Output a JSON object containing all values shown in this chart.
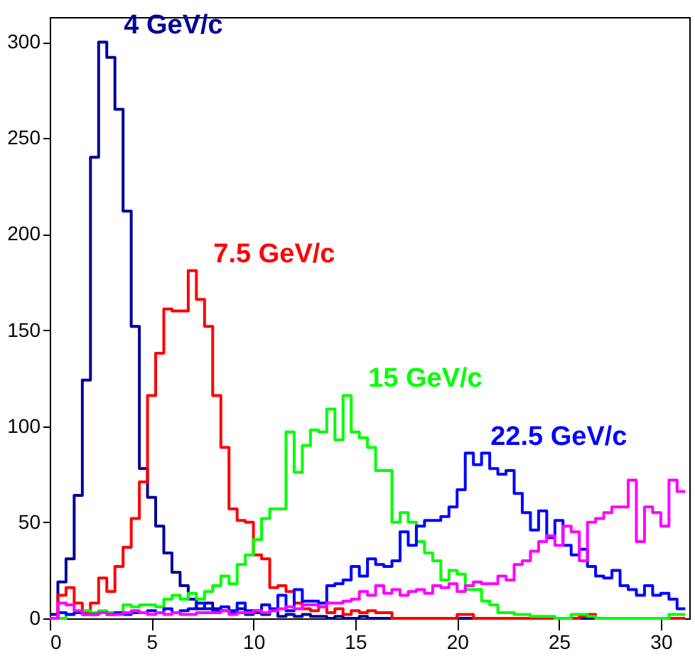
{
  "chart_data": {
    "type": "histogram",
    "bins": [
      0,
      0.4,
      0.8,
      1.2,
      1.6,
      2,
      2.4,
      2.8,
      3.2,
      3.6,
      4,
      4.4,
      4.8,
      5.2,
      5.6,
      6,
      6.4,
      6.8,
      7.2,
      7.6,
      8,
      8.4,
      8.8,
      9.2,
      9.6,
      10,
      10.4,
      10.8,
      11.2,
      11.6,
      12,
      12.4,
      12.8,
      13.2,
      13.6,
      14,
      14.4,
      14.8,
      15.2,
      15.6,
      16,
      16.4,
      16.8,
      17.2,
      17.6,
      18,
      18.4,
      18.8,
      19.2,
      19.6,
      20,
      20.4,
      20.8,
      21.2,
      21.6,
      22,
      22.4,
      22.8,
      23.2,
      23.6,
      24,
      24.4,
      24.8,
      25.2,
      25.6,
      26,
      26.4,
      26.8,
      27.2,
      27.6,
      28,
      28.4,
      28.8,
      29.2,
      29.6,
      30,
      30.4,
      30.8,
      31.2
    ],
    "series": [
      {
        "name": "4 GeV/c",
        "color": "#000099",
        "values": [
          2,
          19,
          31,
          64,
          124,
          240,
          300,
          292,
          265,
          212,
          152,
          78,
          63,
          48,
          34,
          24,
          17,
          10,
          5,
          8,
          5,
          4,
          3,
          5,
          2,
          3,
          2,
          4,
          1,
          2,
          1,
          2,
          1,
          1,
          0,
          1,
          0,
          0,
          1,
          0,
          0,
          0,
          0,
          0,
          0,
          0,
          0,
          0,
          0,
          0,
          0,
          0,
          0,
          0,
          0,
          0,
          0,
          0,
          0,
          0,
          0,
          0,
          0,
          0,
          0,
          0,
          0,
          0,
          0,
          0,
          0,
          0,
          0,
          0,
          0,
          0,
          0,
          0
        ]
      },
      {
        "name": "7.5 GeV/c",
        "color": "#ff0000",
        "values": [
          0,
          12,
          16,
          8,
          3,
          8,
          21,
          14,
          27,
          37,
          52,
          71,
          116,
          138,
          161,
          160,
          160,
          181,
          166,
          152,
          116,
          89,
          57,
          51,
          50,
          33,
          31,
          16,
          17,
          14,
          8,
          5,
          4,
          6,
          3,
          5,
          2,
          4,
          3,
          4,
          3,
          3,
          0,
          0,
          0,
          0,
          0,
          0,
          0,
          0,
          2,
          2,
          0,
          0,
          0,
          0,
          0,
          0,
          0,
          0,
          0,
          0,
          0,
          0,
          0,
          1,
          2,
          0,
          0,
          0,
          0,
          0,
          0,
          0,
          0,
          0,
          0,
          0
        ]
      },
      {
        "name": "15 GeV/c",
        "color": "#00ff00",
        "values": [
          0,
          0,
          2,
          3,
          4,
          3,
          4,
          3,
          3,
          7,
          6,
          7,
          7,
          6,
          10,
          12,
          10,
          13,
          10,
          14,
          17,
          22,
          18,
          28,
          33,
          41,
          52,
          57,
          57,
          97,
          76,
          90,
          98,
          97,
          109,
          93,
          116,
          97,
          94,
          89,
          77,
          77,
          50,
          55,
          50,
          40,
          34,
          30,
          20,
          25,
          23,
          15,
          15,
          9,
          7,
          3,
          3,
          2,
          2,
          1,
          1,
          1,
          0,
          0,
          2,
          2,
          1,
          0,
          0,
          0,
          0,
          0,
          0,
          0,
          0,
          0,
          2,
          2
        ]
      },
      {
        "name": "22.5 GeV/c",
        "color": "#0000ff",
        "values": [
          0,
          3,
          2,
          3,
          2,
          2,
          3,
          2,
          3,
          2,
          3,
          3,
          4,
          3,
          5,
          3,
          4,
          5,
          8,
          5,
          4,
          6,
          4,
          8,
          4,
          4,
          7,
          5,
          12,
          4,
          15,
          9,
          9,
          8,
          17,
          18,
          20,
          27,
          22,
          31,
          28,
          27,
          30,
          45,
          38,
          48,
          51,
          51,
          53,
          58,
          67,
          86,
          80,
          86,
          78,
          75,
          77,
          65,
          55,
          46,
          56,
          42,
          51,
          38,
          33,
          36,
          27,
          22,
          21,
          25,
          17,
          15,
          12,
          17,
          12,
          13,
          10,
          5
        ]
      },
      {
        "color": "#ff00ff",
        "values": [
          0,
          8,
          7,
          4,
          2,
          2,
          3,
          2,
          2,
          3,
          4,
          3,
          2,
          3,
          2,
          3,
          2,
          2,
          3,
          3,
          3,
          4,
          2,
          3,
          3,
          4,
          3,
          4,
          5,
          6,
          5,
          7,
          7,
          6,
          8,
          8,
          9,
          10,
          14,
          12,
          17,
          13,
          15,
          12,
          14,
          15,
          13,
          17,
          16,
          18,
          14,
          17,
          19,
          18,
          18,
          22,
          20,
          28,
          30,
          35,
          40,
          43,
          38,
          48,
          45,
          30,
          50,
          52,
          55,
          58,
          58,
          72,
          40,
          58,
          55,
          48,
          72,
          66
        ]
      }
    ],
    "xlim": [
      0,
      31.4
    ],
    "ylim": [
      0,
      313
    ],
    "xticks": [
      0,
      5,
      10,
      15,
      20,
      25,
      30
    ],
    "yticks": [
      0,
      50,
      100,
      150,
      200,
      250,
      300
    ]
  }
}
